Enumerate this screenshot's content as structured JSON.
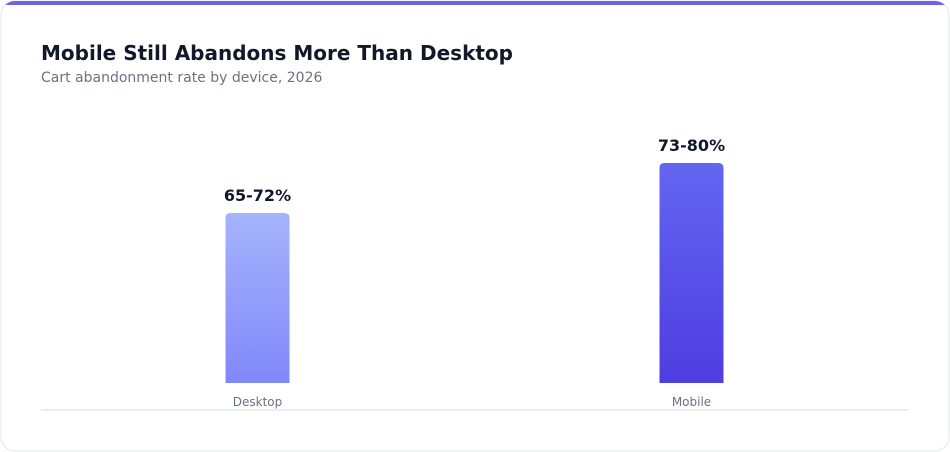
{
  "chart_data": {
    "type": "bar",
    "title": "Mobile Still Abandons More Than Desktop",
    "subtitle": "Cart abandonment rate by device, 2026",
    "categories": [
      "Desktop",
      "Mobile"
    ],
    "values": [
      72,
      80
    ],
    "value_labels": [
      "65-72%",
      "73-80%"
    ],
    "colors": [
      "#a5b4fc",
      "#6366f1"
    ],
    "ylim": [
      44.8,
      80
    ]
  }
}
